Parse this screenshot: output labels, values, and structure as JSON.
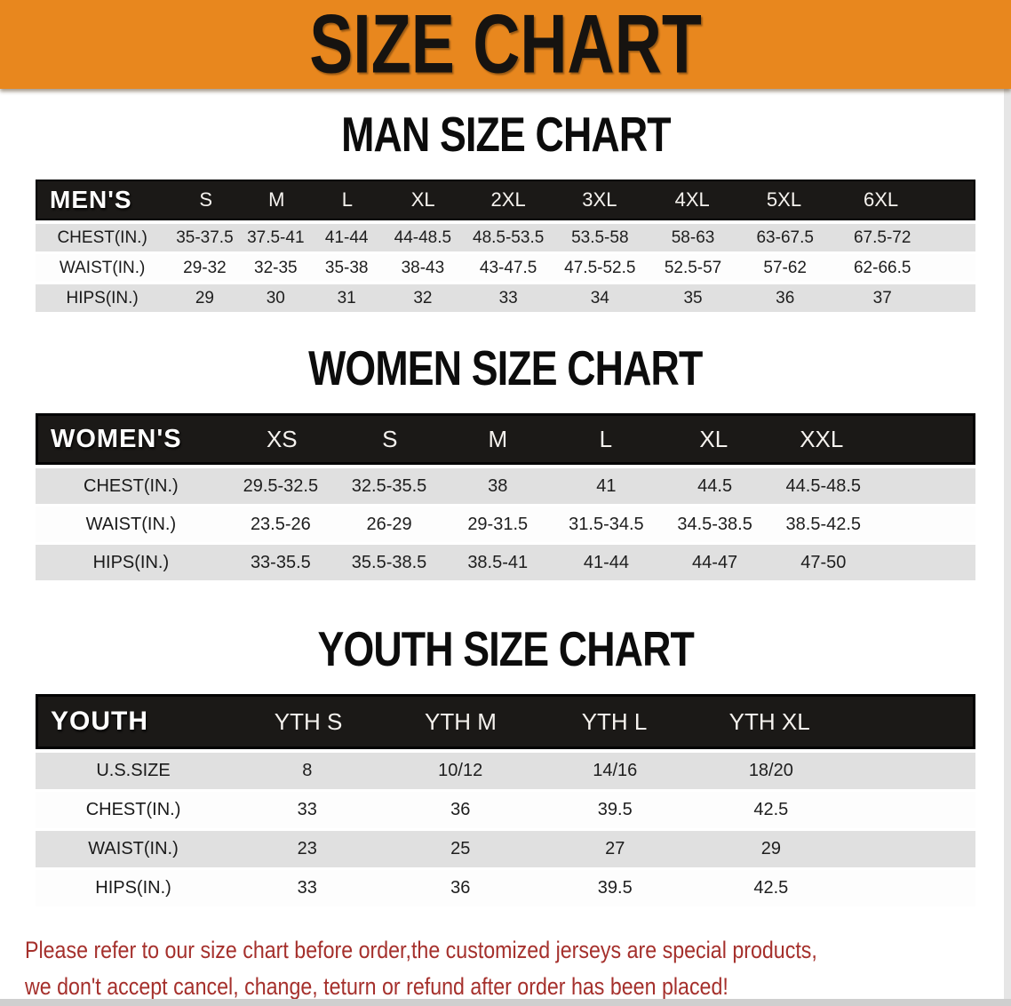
{
  "banner": {
    "title": "SIZE CHART",
    "bg_color": "#E8871E",
    "text_color": "#161310"
  },
  "sections": [
    {
      "id": "men",
      "title": "MAN SIZE CHART",
      "header_label": "MEN'S",
      "columns": [
        "S",
        "M",
        "L",
        "XL",
        "2XL",
        "3XL",
        "4XL",
        "5XL",
        "6XL"
      ],
      "rows": [
        {
          "label": "CHEST(IN.)",
          "values": [
            "35-37.5",
            "37.5-41",
            "41-44",
            "44-48.5",
            "48.5-53.5",
            "53.5-58",
            "58-63",
            "63-67.5",
            "67.5-72"
          ]
        },
        {
          "label": "WAIST(IN.)",
          "values": [
            "29-32",
            "32-35",
            "35-38",
            "38-43",
            "43-47.5",
            "47.5-52.5",
            "52.5-57",
            "57-62",
            "62-66.5"
          ]
        },
        {
          "label": "HIPS(IN.)",
          "values": [
            "29",
            "30",
            "31",
            "32",
            "33",
            "34",
            "35",
            "36",
            "37"
          ]
        }
      ]
    },
    {
      "id": "women",
      "title": "WOMEN SIZE CHART",
      "header_label": "WOMEN'S",
      "columns": [
        "XS",
        "S",
        "M",
        "L",
        "XL",
        "XXL"
      ],
      "rows": [
        {
          "label": "CHEST(IN.)",
          "values": [
            "29.5-32.5",
            "32.5-35.5",
            "38",
            "41",
            "44.5",
            "44.5-48.5"
          ]
        },
        {
          "label": "WAIST(IN.)",
          "values": [
            "23.5-26",
            "26-29",
            "29-31.5",
            "31.5-34.5",
            "34.5-38.5",
            "38.5-42.5"
          ]
        },
        {
          "label": "HIPS(IN.)",
          "values": [
            "33-35.5",
            "35.5-38.5",
            "38.5-41",
            "41-44",
            "44-47",
            "47-50"
          ]
        }
      ]
    },
    {
      "id": "youth",
      "title": "YOUTH SIZE CHART",
      "header_label": "YOUTH",
      "columns": [
        "YTH S",
        "YTH M",
        "YTH L",
        "YTH XL"
      ],
      "rows": [
        {
          "label": "U.S.SIZE",
          "values": [
            "8",
            "10/12",
            "14/16",
            "18/20"
          ]
        },
        {
          "label": "CHEST(IN.)",
          "values": [
            "33",
            "36",
            "39.5",
            "42.5"
          ]
        },
        {
          "label": "WAIST(IN.)",
          "values": [
            "23",
            "25",
            "27",
            "29"
          ]
        },
        {
          "label": "HIPS(IN.)",
          "values": [
            "33",
            "36",
            "39.5",
            "42.5"
          ]
        }
      ]
    }
  ],
  "footer": {
    "text_color": "#A5302C",
    "lines": [
      "Please refer to our size chart before order,the customized jerseys are special products,",
      "we don't accept cancel, change, teturn or refund after order has been placed!"
    ]
  }
}
